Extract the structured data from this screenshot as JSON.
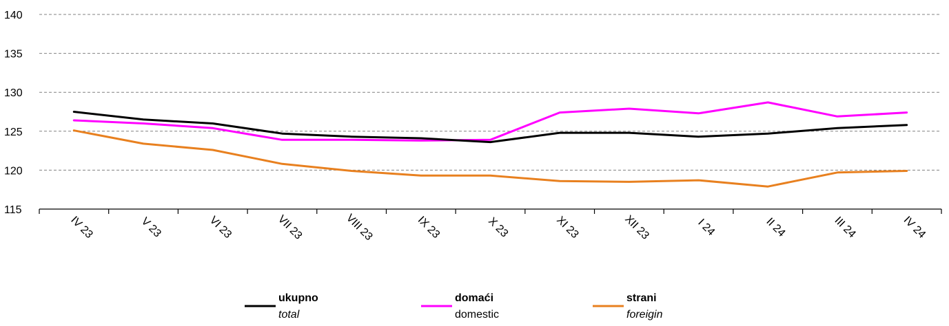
{
  "chart_data": {
    "type": "line",
    "categories": [
      "IV 23",
      "V 23",
      "VI 23",
      "VII 23",
      "VIII 23",
      "IX 23",
      "X 23",
      "XI 23",
      "XII 23",
      "I 24",
      "II 24",
      "III 24",
      "IV 24"
    ],
    "ylim": [
      115,
      140
    ],
    "yticks": [
      115,
      120,
      125,
      130,
      135,
      140
    ],
    "grid": true,
    "legend_position": "bottom",
    "series": [
      {
        "key": "total",
        "name": "ukupno",
        "subname": "total",
        "subname_italic": true,
        "color": "#000000",
        "values": [
          127.5,
          126.5,
          126.0,
          124.7,
          124.3,
          124.1,
          123.6,
          124.8,
          124.8,
          124.3,
          124.7,
          125.4,
          125.8
        ]
      },
      {
        "key": "domestic",
        "name": "domaći",
        "subname": "domestic",
        "subname_italic": false,
        "color": "#ff00ff",
        "values": [
          126.4,
          126.0,
          125.4,
          123.9,
          123.9,
          123.8,
          123.9,
          127.4,
          127.9,
          127.3,
          128.7,
          126.9,
          127.4
        ]
      },
      {
        "key": "foreign",
        "name": "strani",
        "subname": "foreigin",
        "subname_italic": true,
        "color": "#e8801f",
        "values": [
          125.1,
          123.4,
          122.6,
          120.8,
          119.9,
          119.3,
          119.3,
          118.6,
          118.5,
          118.7,
          117.9,
          119.7,
          119.9
        ]
      }
    ]
  }
}
